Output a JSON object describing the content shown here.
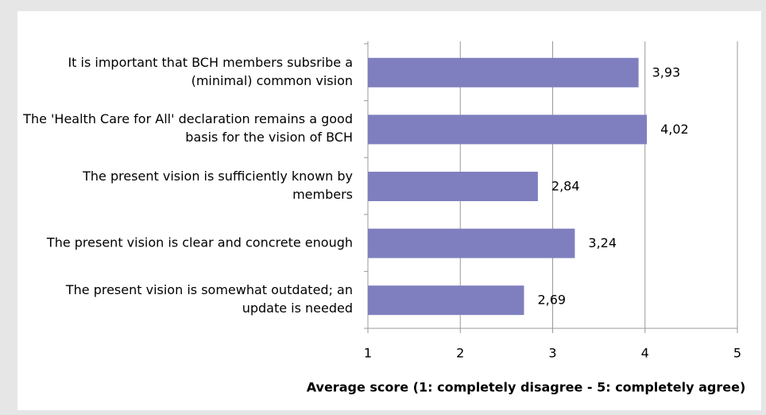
{
  "chart_data": {
    "type": "barh",
    "categories": [
      "It is important that BCH members subsribe a (minimal) common vision",
      "The 'Health Care for All' declaration remains a good basis for the vision of BCH",
      "The present vision is sufficiently known by members",
      "The present vision is clear and concrete enough",
      "The present vision is somewhat outdated; an update is needed"
    ],
    "values": [
      3.93,
      4.02,
      2.84,
      3.24,
      2.69
    ],
    "value_labels": [
      "3,93",
      "4,02",
      "2,84",
      "3,24",
      "2,69"
    ],
    "color": "#7f7fbf",
    "xlim": [
      1,
      5
    ],
    "xticks": [
      1,
      2,
      3,
      4,
      5
    ],
    "grid": true,
    "xlabel": "Average score (1: completely disagree - 5: completely agree)"
  }
}
